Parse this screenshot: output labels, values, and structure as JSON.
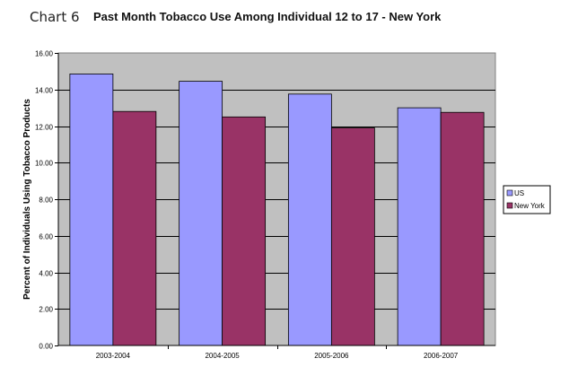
{
  "page": {
    "chart_number": "Chart 6"
  },
  "chart_data": {
    "type": "bar",
    "title": "Past Month Tobacco Use Among Individual 12 to 17 - New York",
    "xlabel": "",
    "ylabel": "Percent of Individuals Using Tobacco Products",
    "categories": [
      "2003-2004",
      "2004-2005",
      "2005-2006",
      "2006-2007"
    ],
    "series": [
      {
        "name": "US",
        "values": [
          14.85,
          14.45,
          13.75,
          13.0
        ],
        "color": "#9999ff"
      },
      {
        "name": "New York",
        "values": [
          12.8,
          12.5,
          11.9,
          12.75
        ],
        "color": "#993366"
      }
    ],
    "ylim": [
      0,
      16
    ],
    "y_ticks": [
      "0.00",
      "2.00",
      "4.00",
      "6.00",
      "8.00",
      "10.00",
      "12.00",
      "14.00",
      "16.00"
    ],
    "grid": true,
    "plot_background": "#c0c0c0",
    "legend_position": "right"
  }
}
